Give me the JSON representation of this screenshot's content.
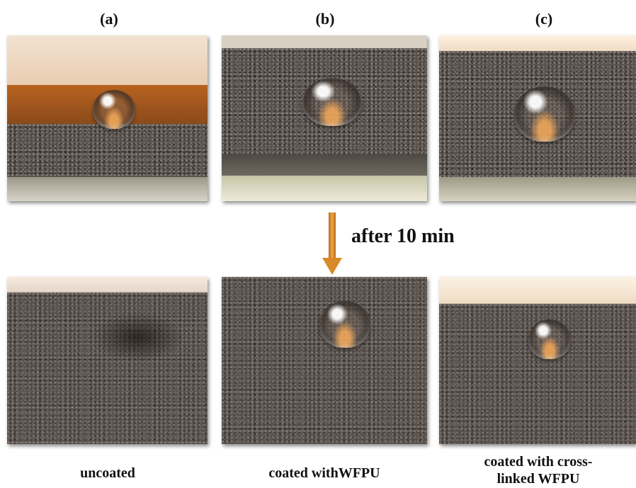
{
  "columns": [
    {
      "id": "a",
      "label": "(a)",
      "caption": "uncoated"
    },
    {
      "id": "b",
      "label": "(b)",
      "caption": "coated withWFPU"
    },
    {
      "id": "c",
      "label": "(c)",
      "caption": "coated with cross-\nlinked WFPU"
    }
  ],
  "arrow_text": "after 10 min",
  "colors": {
    "arrow": "#d8892a",
    "text": "#111111",
    "fabric": "#5a524d"
  },
  "photos": {
    "top_a": "water droplet resting on uncoated fabric",
    "top_b": "water droplet resting on WFPU-coated fabric",
    "top_c": "water droplet resting on cross-linked WFPU-coated fabric",
    "bottom_a": "uncoated fabric with droplet absorbed",
    "bottom_b": "WFPU-coated fabric with droplet remaining",
    "bottom_c": "cross-linked WFPU-coated fabric with droplet remaining"
  }
}
